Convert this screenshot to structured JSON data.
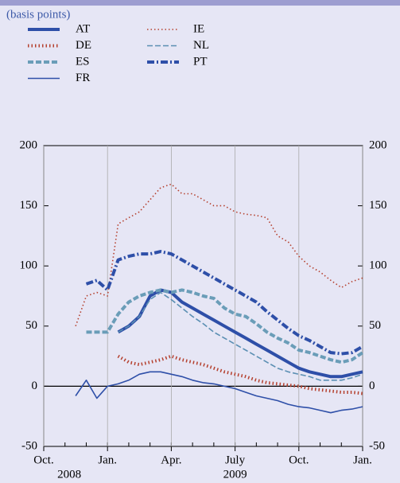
{
  "chart_data": {
    "type": "line",
    "subtitle": "(basis points)",
    "x": [
      1.5,
      2,
      2.5,
      3,
      3.5,
      4,
      4.5,
      5,
      5.5,
      6,
      6.5,
      7,
      7.5,
      8,
      8.5,
      9,
      9.5,
      10,
      10.5,
      11,
      11.5,
      12,
      12.5,
      13,
      13.5,
      14,
      14.5,
      15
    ],
    "xlim": [
      0,
      15
    ],
    "xticks": [
      {
        "value": 0,
        "label": "Oct."
      },
      {
        "value": 3,
        "label": "Jan."
      },
      {
        "value": 6,
        "label": "Apr."
      },
      {
        "value": 9,
        "label": "July"
      },
      {
        "value": 12,
        "label": "Oct."
      },
      {
        "value": 15,
        "label": "Jan."
      }
    ],
    "year_labels": [
      {
        "value": 1.2,
        "label": "2008"
      },
      {
        "value": 9,
        "label": "2009"
      }
    ],
    "ylim": [
      -50,
      200
    ],
    "yticks": [
      -50,
      0,
      50,
      100,
      150,
      200
    ],
    "grid": true,
    "series": [
      {
        "name": "AT",
        "color": "#2e4fa8",
        "line_style": "solid",
        "weight": "thick",
        "values": [
          null,
          null,
          null,
          null,
          45,
          50,
          58,
          75,
          80,
          78,
          70,
          65,
          60,
          55,
          50,
          45,
          40,
          35,
          30,
          25,
          20,
          15,
          12,
          10,
          8,
          8,
          10,
          12
        ]
      },
      {
        "name": "DE",
        "color": "#b5412f",
        "line_style": "dotted",
        "weight": "thick",
        "values": [
          null,
          null,
          null,
          null,
          25,
          20,
          18,
          20,
          22,
          25,
          22,
          20,
          18,
          15,
          12,
          10,
          8,
          5,
          3,
          2,
          1,
          0,
          -2,
          -3,
          -4,
          -5,
          -5,
          -6
        ]
      },
      {
        "name": "ES",
        "color": "#6a9db8",
        "line_style": "dashed",
        "weight": "thick",
        "values": [
          null,
          45,
          45,
          45,
          60,
          70,
          75,
          78,
          80,
          78,
          80,
          78,
          75,
          73,
          65,
          60,
          58,
          52,
          45,
          40,
          36,
          30,
          28,
          25,
          22,
          20,
          22,
          28
        ]
      },
      {
        "name": "FR",
        "color": "#2e4fa8",
        "line_style": "solid",
        "weight": "thin",
        "values": [
          -8,
          5,
          -10,
          0,
          2,
          5,
          10,
          12,
          12,
          10,
          8,
          5,
          3,
          2,
          0,
          -2,
          -5,
          -8,
          -10,
          -12,
          -15,
          -17,
          -18,
          -20,
          -22,
          -20,
          -19,
          -17
        ]
      },
      {
        "name": "IE",
        "color": "#b5412f",
        "line_style": "dotted",
        "weight": "thin",
        "values": [
          50,
          75,
          78,
          75,
          135,
          140,
          145,
          155,
          165,
          168,
          160,
          160,
          155,
          150,
          150,
          145,
          143,
          142,
          140,
          125,
          120,
          108,
          100,
          95,
          88,
          82,
          87,
          90
        ]
      },
      {
        "name": "NL",
        "color": "#5b8fb3",
        "line_style": "dashed",
        "weight": "thin",
        "values": [
          null,
          null,
          null,
          null,
          45,
          50,
          58,
          72,
          78,
          72,
          65,
          58,
          52,
          45,
          40,
          35,
          30,
          25,
          20,
          15,
          12,
          10,
          8,
          5,
          5,
          5,
          7,
          10
        ]
      },
      {
        "name": "PT",
        "color": "#2e4fa8",
        "line_style": "dashdot",
        "weight": "thick",
        "values": [
          null,
          85,
          88,
          80,
          105,
          108,
          110,
          110,
          112,
          110,
          105,
          100,
          95,
          90,
          85,
          80,
          75,
          70,
          62,
          55,
          48,
          42,
          38,
          33,
          28,
          27,
          28,
          33
        ]
      }
    ]
  }
}
